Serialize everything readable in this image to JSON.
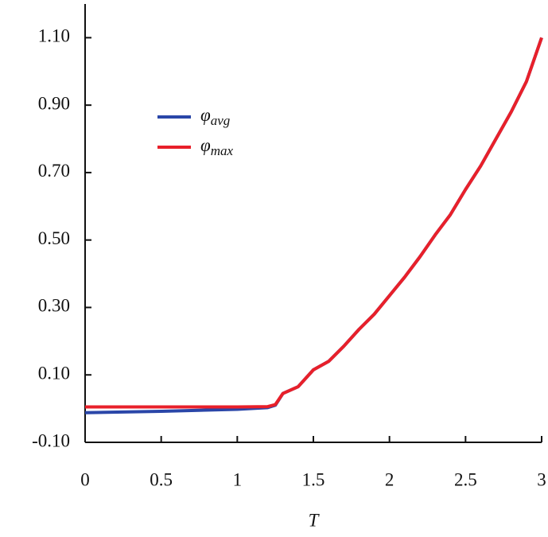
{
  "chart_data": {
    "type": "line",
    "x_label": "T",
    "x": [
      0,
      0.5,
      1,
      1.2,
      1.25,
      1.3,
      1.4,
      1.5,
      1.6,
      1.7,
      1.8,
      1.9,
      2.0,
      2.1,
      2.2,
      2.3,
      2.4,
      2.5,
      2.6,
      2.7,
      2.8,
      2.9,
      3.0
    ],
    "series": [
      {
        "name": "φavg",
        "color": "#2a46a8",
        "values": [
          -0.012,
          -0.008,
          -0.002,
          0.003,
          0.01,
          0.045,
          0.065,
          0.115,
          0.14,
          0.185,
          0.235,
          0.28,
          0.335,
          0.39,
          0.45,
          0.515,
          0.575,
          0.65,
          0.72,
          0.8,
          0.88,
          0.97,
          1.1
        ]
      },
      {
        "name": "φmax",
        "color": "#e8202a",
        "values": [
          0.005,
          0.005,
          0.005,
          0.006,
          0.012,
          0.045,
          0.065,
          0.115,
          0.14,
          0.185,
          0.235,
          0.28,
          0.335,
          0.39,
          0.45,
          0.515,
          0.575,
          0.65,
          0.72,
          0.8,
          0.88,
          0.97,
          1.1
        ]
      }
    ],
    "xlim": [
      0,
      3
    ],
    "xticks": [
      0,
      0.5,
      1,
      1.5,
      2,
      2.5,
      3
    ],
    "ylim": [
      -0.1,
      1.2
    ],
    "yticks": [
      {
        "value": -0.1,
        "label": "-0.10"
      },
      {
        "value": 0.1,
        "label": "0.10"
      },
      {
        "value": 0.3,
        "label": "0.30"
      },
      {
        "value": 0.5,
        "label": "0.50"
      },
      {
        "value": 0.7,
        "label": "0.70"
      },
      {
        "value": 0.9,
        "label": "0.90"
      },
      {
        "value": 1.1,
        "label": "1.10"
      }
    ],
    "legend": "upper-left",
    "grid": false
  }
}
